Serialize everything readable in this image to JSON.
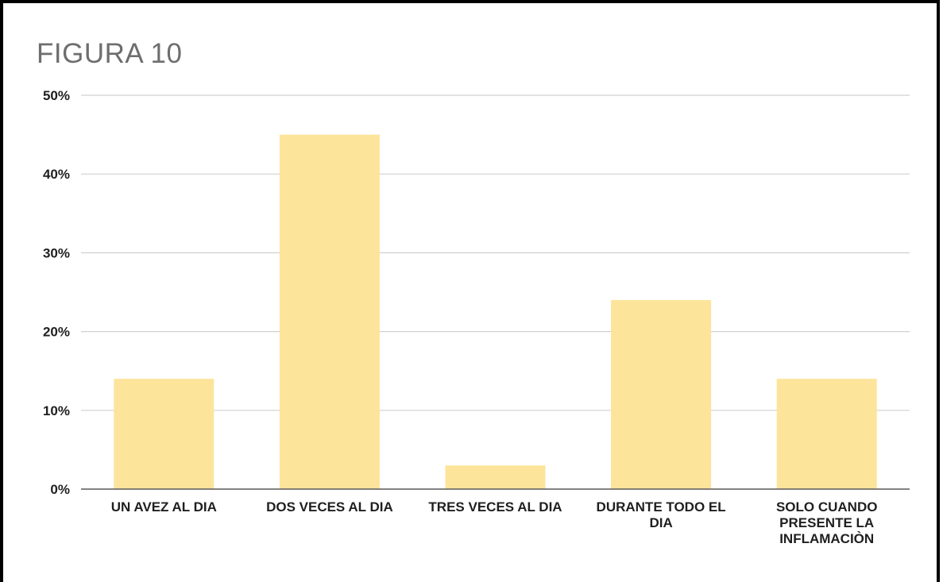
{
  "chart_data": {
    "type": "bar",
    "title": "FIGURA 10",
    "categories": [
      [
        "UN AVEZ AL DIA"
      ],
      [
        "DOS VECES AL DIA"
      ],
      [
        "TRES VECES AL DIA"
      ],
      [
        "DURANTE TODO EL",
        "DIA"
      ],
      [
        "SOLO CUANDO",
        "PRESENTE LA",
        "INFLAMACIÒN"
      ]
    ],
    "values": [
      14,
      45,
      3,
      24,
      14
    ],
    "ylim": [
      0,
      50
    ],
    "yticks": [
      "0%",
      "10%",
      "20%",
      "30%",
      "40%",
      "50%"
    ],
    "bar_color": "#fde49b",
    "grid": true,
    "xlabel": "",
    "ylabel": ""
  }
}
